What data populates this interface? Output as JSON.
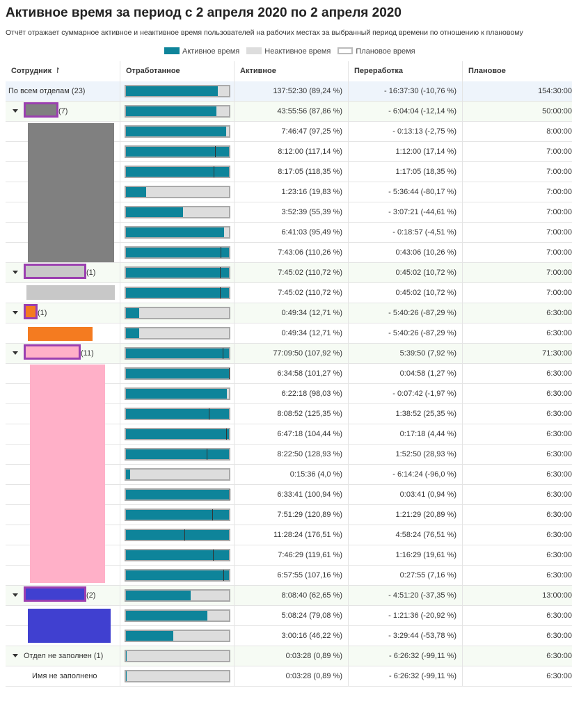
{
  "header": {
    "title": "Активное время за период с 2 апреля 2020 по 2 апреля 2020",
    "subtitle": "Отчёт отражает суммарное активное и неактивное время пользователей на рабочих местах за выбранный период времени по отношению к плановому"
  },
  "legend": [
    "Активное время",
    "Неактивное время",
    "Плановое время"
  ],
  "table": {
    "columns": [
      "Сотрудник",
      "Отработанное",
      "Активное",
      "Переработка",
      "Плановое"
    ],
    "rows": [
      {
        "kind": "total",
        "label": "По всем отделам (23)",
        "pct": 89.24,
        "active": "137:52:30 (89,24 %)",
        "overtime": "- 16:37:30 (-10,76 %)",
        "planned": "154:30:00"
      },
      {
        "kind": "group",
        "count": "(7)",
        "pct": 87.86,
        "active": "43:55:56 (87,86 %)",
        "overtime": "- 6:04:04 (-12,14 %)",
        "planned": "50:00:00"
      },
      {
        "kind": "employee",
        "pct": 97.25,
        "active": "7:46:47 (97,25 %)",
        "overtime": "- 0:13:13 (-2,75 %)",
        "planned": "8:00:00"
      },
      {
        "kind": "employee",
        "pct": 117.14,
        "active": "8:12:00 (117,14 %)",
        "overtime": "1:12:00 (17,14 %)",
        "planned": "7:00:00"
      },
      {
        "kind": "employee",
        "pct": 118.35,
        "active": "8:17:05 (118,35 %)",
        "overtime": "1:17:05 (18,35 %)",
        "planned": "7:00:00"
      },
      {
        "kind": "employee",
        "pct": 19.83,
        "active": "1:23:16 (19,83 %)",
        "overtime": "- 5:36:44 (-80,17 %)",
        "planned": "7:00:00"
      },
      {
        "kind": "employee",
        "pct": 55.39,
        "active": "3:52:39 (55,39 %)",
        "overtime": "- 3:07:21 (-44,61 %)",
        "planned": "7:00:00"
      },
      {
        "kind": "employee",
        "pct": 95.49,
        "active": "6:41:03 (95,49 %)",
        "overtime": "- 0:18:57 (-4,51 %)",
        "planned": "7:00:00"
      },
      {
        "kind": "employee",
        "pct": 110.26,
        "active": "7:43:06 (110,26 %)",
        "overtime": "0:43:06 (10,26 %)",
        "planned": "7:00:00"
      },
      {
        "kind": "group",
        "count": "(1)",
        "pct": 110.72,
        "active": "7:45:02 (110,72 %)",
        "overtime": "0:45:02 (10,72 %)",
        "planned": "7:00:00"
      },
      {
        "kind": "employee",
        "pct": 110.72,
        "active": "7:45:02 (110,72 %)",
        "overtime": "0:45:02 (10,72 %)",
        "planned": "7:00:00"
      },
      {
        "kind": "group",
        "count": "(1)",
        "pct": 12.71,
        "active": "0:49:34 (12,71 %)",
        "overtime": "- 5:40:26 (-87,29 %)",
        "planned": "6:30:00"
      },
      {
        "kind": "employee",
        "pct": 12.71,
        "active": "0:49:34 (12,71 %)",
        "overtime": "- 5:40:26 (-87,29 %)",
        "planned": "6:30:00"
      },
      {
        "kind": "group",
        "count": "(11)",
        "pct": 107.92,
        "active": "77:09:50 (107,92 %)",
        "overtime": "5:39:50 (7,92 %)",
        "planned": "71:30:00"
      },
      {
        "kind": "employee",
        "pct": 101.27,
        "active": "6:34:58 (101,27 %)",
        "overtime": "0:04:58 (1,27 %)",
        "planned": "6:30:00"
      },
      {
        "kind": "employee",
        "pct": 98.03,
        "active": "6:22:18 (98,03 %)",
        "overtime": "- 0:07:42 (-1,97 %)",
        "planned": "6:30:00"
      },
      {
        "kind": "employee",
        "pct": 125.35,
        "active": "8:08:52 (125,35 %)",
        "overtime": "1:38:52 (25,35 %)",
        "planned": "6:30:00"
      },
      {
        "kind": "employee",
        "pct": 104.44,
        "active": "6:47:18 (104,44 %)",
        "overtime": "0:17:18 (4,44 %)",
        "planned": "6:30:00"
      },
      {
        "kind": "employee",
        "pct": 128.93,
        "active": "8:22:50 (128,93 %)",
        "overtime": "1:52:50 (28,93 %)",
        "planned": "6:30:00"
      },
      {
        "kind": "employee",
        "pct": 4.0,
        "active": "0:15:36 (4,0 %)",
        "overtime": "- 6:14:24 (-96,0 %)",
        "planned": "6:30:00"
      },
      {
        "kind": "employee",
        "pct": 100.94,
        "active": "6:33:41 (100,94 %)",
        "overtime": "0:03:41 (0,94 %)",
        "planned": "6:30:00"
      },
      {
        "kind": "employee",
        "pct": 120.89,
        "active": "7:51:29 (120,89 %)",
        "overtime": "1:21:29 (20,89 %)",
        "planned": "6:30:00"
      },
      {
        "kind": "employee",
        "pct": 176.51,
        "active": "11:28:24 (176,51 %)",
        "overtime": "4:58:24 (76,51 %)",
        "planned": "6:30:00"
      },
      {
        "kind": "employee",
        "pct": 119.61,
        "active": "7:46:29 (119,61 %)",
        "overtime": "1:16:29 (19,61 %)",
        "planned": "6:30:00"
      },
      {
        "kind": "employee",
        "pct": 107.16,
        "active": "6:57:55 (107,16 %)",
        "overtime": "0:27:55 (7,16 %)",
        "planned": "6:30:00"
      },
      {
        "kind": "group",
        "count": "(2)",
        "pct": 62.65,
        "active": "8:08:40 (62,65 %)",
        "overtime": "- 4:51:20 (-37,35 %)",
        "planned": "13:00:00"
      },
      {
        "kind": "employee",
        "pct": 79.08,
        "active": "5:08:24 (79,08 %)",
        "overtime": "- 1:21:36 (-20,92 %)",
        "planned": "6:30:00"
      },
      {
        "kind": "employee",
        "pct": 46.22,
        "active": "3:00:16 (46,22 %)",
        "overtime": "- 3:29:44 (-53,78 %)",
        "planned": "6:30:00"
      },
      {
        "kind": "group",
        "label": "Отдел не заполнен (1)",
        "pct": 0.89,
        "active": "0:03:28 (0,89 %)",
        "overtime": "- 6:26:32 (-99,11 %)",
        "planned": "6:30:00"
      },
      {
        "kind": "employee",
        "label": "Имя не заполнено",
        "pct": 0.89,
        "active": "0:03:28 (0,89 %)",
        "overtime": "- 6:26:32 (-99,11 %)",
        "planned": "6:30:00"
      }
    ]
  }
}
